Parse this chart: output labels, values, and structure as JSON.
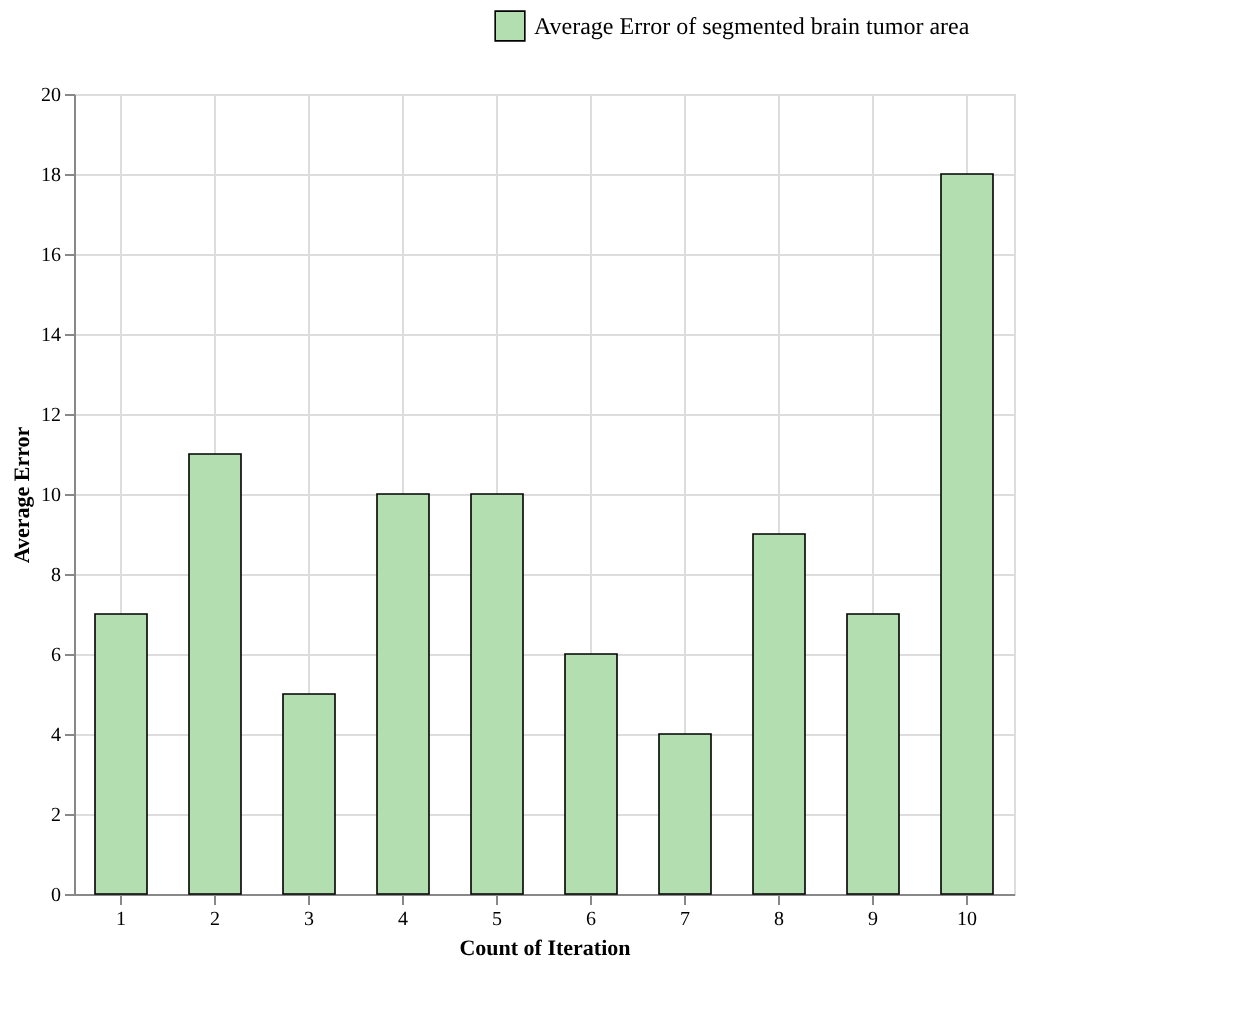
{
  "chart_data": {
    "type": "bar",
    "xlabel": "Count of Iteration",
    "ylabel": "Average Error",
    "categories": [
      "1",
      "2",
      "3",
      "4",
      "5",
      "6",
      "7",
      "8",
      "9",
      "10"
    ],
    "series": [
      {
        "name": "Average Error of segmented brain tumor area",
        "color": "#b3dfb0",
        "values": [
          7,
          11,
          5,
          10,
          10,
          6,
          4,
          9,
          7,
          18
        ]
      }
    ],
    "ylim": [
      0,
      20
    ],
    "yticks": [
      0,
      2,
      4,
      6,
      8,
      10,
      12,
      14,
      16,
      18,
      20
    ],
    "grid": true,
    "legend": "top right"
  }
}
